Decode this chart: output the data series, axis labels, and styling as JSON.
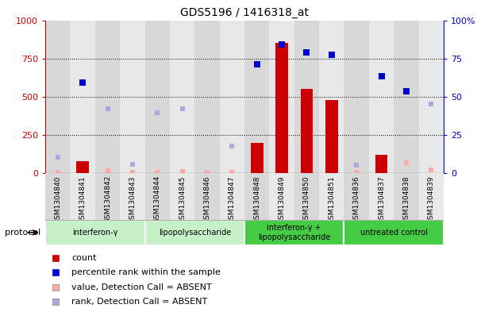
{
  "title": "GDS5196 / 1416318_at",
  "samples": [
    "GSM1304840",
    "GSM1304841",
    "GSM1304842",
    "GSM1304843",
    "GSM1304844",
    "GSM1304845",
    "GSM1304846",
    "GSM1304847",
    "GSM1304848",
    "GSM1304849",
    "GSM1304850",
    "GSM1304851",
    "GSM1304836",
    "GSM1304837",
    "GSM1304838",
    "GSM1304839"
  ],
  "count_values": [
    null,
    80,
    null,
    null,
    null,
    null,
    null,
    null,
    200,
    850,
    550,
    480,
    null,
    120,
    null,
    null
  ],
  "count_absent": [
    5,
    null,
    15,
    5,
    5,
    10,
    5,
    5,
    null,
    null,
    null,
    null,
    5,
    null,
    70,
    20
  ],
  "rank_values_pct": [
    null,
    59,
    null,
    null,
    null,
    null,
    null,
    null,
    71,
    84,
    79,
    77.5,
    null,
    63.5,
    53.5,
    null
  ],
  "rank_absent_pct": [
    10.5,
    null,
    42,
    6,
    39.5,
    42,
    null,
    17.5,
    null,
    null,
    null,
    null,
    5,
    null,
    null,
    45
  ],
  "groups": [
    {
      "label": "interferon-γ",
      "start": 0,
      "end": 4,
      "color": "#c8f0c8"
    },
    {
      "label": "lipopolysaccharide",
      "start": 4,
      "end": 8,
      "color": "#c8f0c8"
    },
    {
      "label": "interferon-γ +\nlipopolysaccharide",
      "start": 8,
      "end": 12,
      "color": "#44cc44"
    },
    {
      "label": "untreated control",
      "start": 12,
      "end": 16,
      "color": "#44cc44"
    }
  ],
  "ylim_left": [
    0,
    1000
  ],
  "ylim_right": [
    0,
    100
  ],
  "yticks_left": [
    0,
    250,
    500,
    750,
    1000
  ],
  "yticks_right": [
    0,
    25,
    50,
    75,
    100
  ],
  "count_color": "#cc0000",
  "rank_color": "#0000cc",
  "count_absent_color": "#ffaaaa",
  "rank_absent_color": "#aaaadd",
  "col_bg_odd": "#d8d8d8",
  "col_bg_even": "#e8e8e8",
  "plot_bg": "#ffffff"
}
